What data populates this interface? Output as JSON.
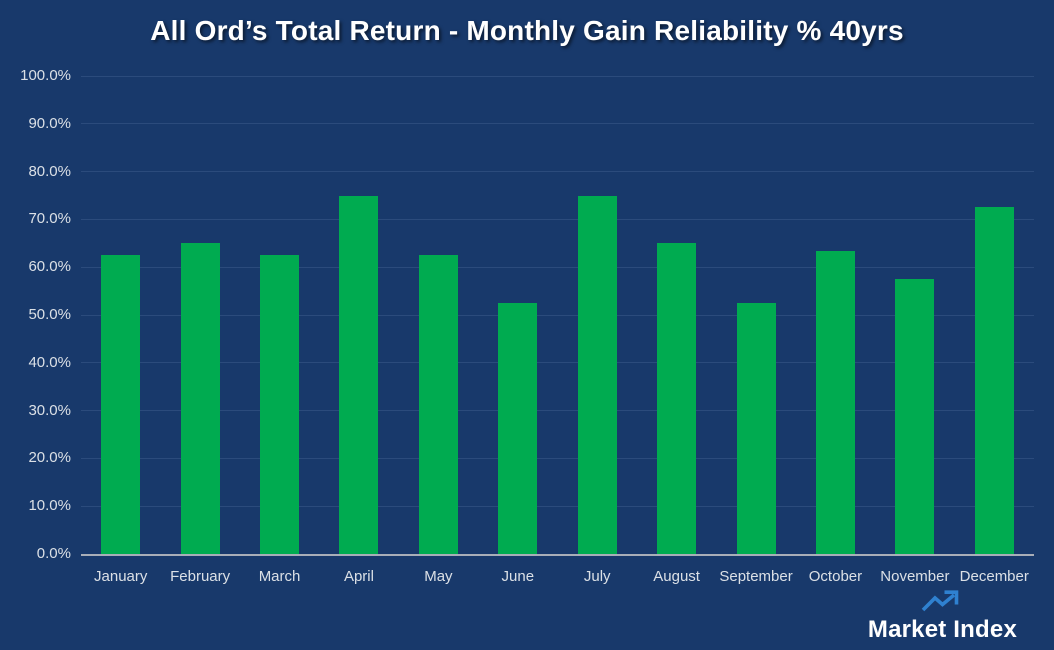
{
  "page": {
    "background_color": "#18396b"
  },
  "chart_data": {
    "type": "bar",
    "title": "All Ord’s Total Return - Monthly Gain Reliability % 40yrs",
    "categories": [
      "January",
      "February",
      "March",
      "April",
      "May",
      "June",
      "July",
      "August",
      "September",
      "October",
      "November",
      "December"
    ],
    "values": [
      62.5,
      65.0,
      62.5,
      75.0,
      62.5,
      52.5,
      75.0,
      65.0,
      52.5,
      63.4,
      57.5,
      72.5
    ],
    "value_unit": "%",
    "xlabel": "",
    "ylabel": "",
    "ylim": [
      0,
      100
    ],
    "y_tick_step": 10,
    "y_tick_labels": [
      "0.0%",
      "10.0%",
      "20.0%",
      "30.0%",
      "40.0%",
      "50.0%",
      "60.0%",
      "70.0%",
      "80.0%",
      "90.0%",
      "100.0%"
    ],
    "grid": "horizontal",
    "legend": "none",
    "colors": {
      "bar": "#00ab50",
      "background": "#18396b",
      "gridline": "#2b4b7c",
      "axis_line": "#a8aeb8",
      "tick_label": "#dbe0e6",
      "title": "#ffffff"
    }
  },
  "branding": {
    "logo_text": "Market Index",
    "logo_icon": "trend-up-arrow-icon",
    "logo_arrow_color": "#2f81d0",
    "logo_text_color": "#ffffff"
  }
}
